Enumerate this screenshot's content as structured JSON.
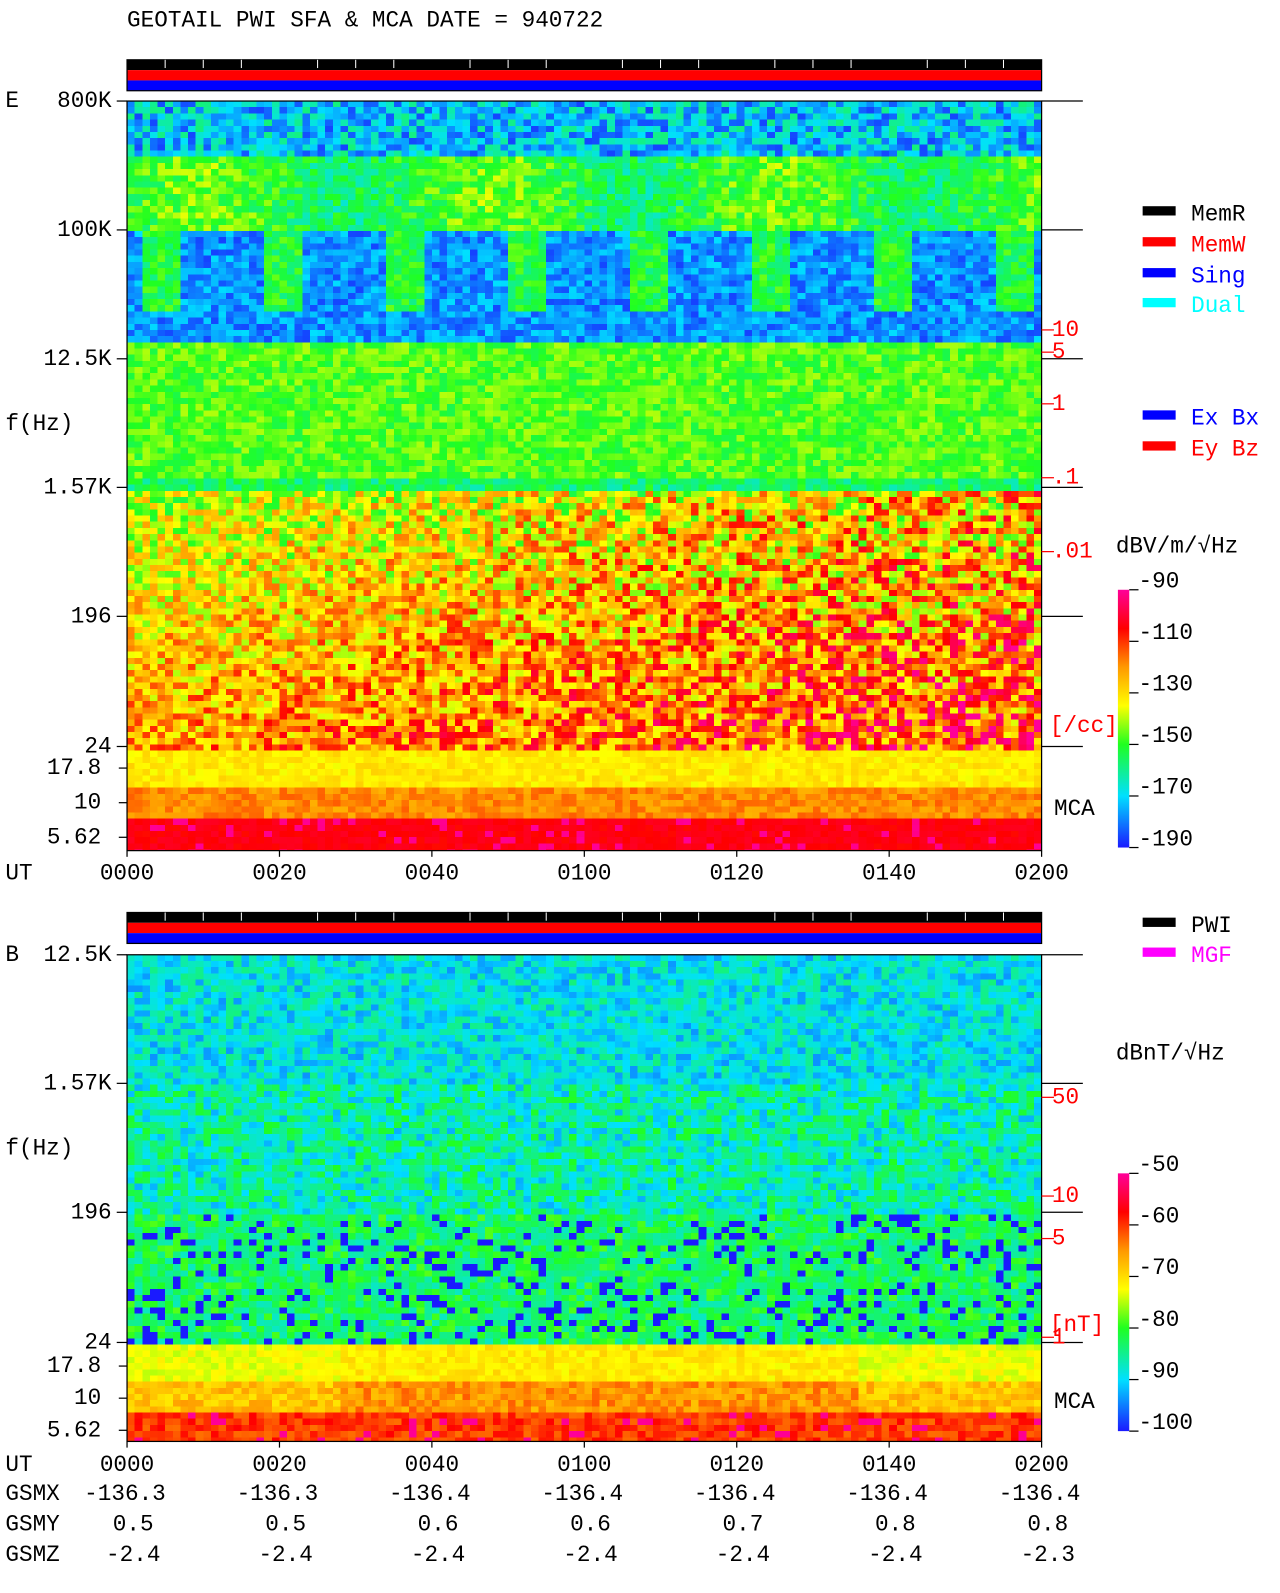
{
  "title": "GEOTAIL  PWI SFA & MCA   DATE = 940722",
  "chart_data": [
    {
      "type": "spectrogram",
      "panel_label": "E",
      "y_label": "f(Hz)",
      "x_label": "UT",
      "y_scale": "log",
      "ylim": [
        24,
        800000
      ],
      "yticks": [
        {
          "value": 800000,
          "label": "800K"
        },
        {
          "value": 100000,
          "label": "100K"
        },
        {
          "value": 12500,
          "label": "12.5K"
        },
        {
          "value": 1570,
          "label": "1.57K"
        },
        196,
        24
      ],
      "band_label": "MCA",
      "mca_ylim": [
        4.5,
        25.5
      ],
      "mca_yticks": [
        17.8,
        10,
        5.62
      ],
      "xlim": [
        0,
        120
      ],
      "xticks": [
        {
          "value": 0,
          "label": "0000"
        },
        {
          "value": 20,
          "label": "0020"
        },
        {
          "value": 40,
          "label": "0040"
        },
        {
          "value": 60,
          "label": "0100"
        },
        {
          "value": 80,
          "label": "0120"
        },
        {
          "value": 100,
          "label": "0140"
        },
        {
          "value": 120,
          "label": "0200"
        }
      ],
      "y2_label": "[/cc]",
      "y2_scale": "log",
      "y2_color": "#ff0000",
      "y2lim": [
        9e-07,
        12500
      ],
      "y2ticks": [
        10,
        5,
        1,
        {
          "value": 0.1,
          "label": ".1"
        },
        {
          "value": 0.01,
          "label": ".01"
        }
      ],
      "colorbar": {
        "label": "dBV/m/√Hz",
        "clim": [
          -190,
          -90
        ],
        "ticks": [
          -90,
          -110,
          -130,
          -150,
          -170,
          -190
        ]
      },
      "legends": [
        [
          {
            "name": "MemR",
            "color": "#000000"
          },
          {
            "name": "MemW",
            "color": "#ff0000"
          },
          {
            "name": "Sing",
            "color": "#0000ff"
          },
          {
            "name": "Dual",
            "color": "#00ffff"
          }
        ],
        [
          {
            "name": "Ex Bx",
            "color": "#0000ff"
          },
          {
            "name": "Ey Bz",
            "color": "#ff0000"
          }
        ]
      ]
    },
    {
      "type": "spectrogram",
      "panel_label": "B",
      "y_label": "f(Hz)",
      "x_label": "UT",
      "y_scale": "log",
      "ylim": [
        24,
        12500
      ],
      "yticks": [
        {
          "value": 12500,
          "label": "12.5K"
        },
        {
          "value": 1570,
          "label": "1.57K"
        },
        196,
        24
      ],
      "band_label": "MCA",
      "mca_ylim": [
        4.6,
        27.2
      ],
      "mca_yticks": [
        17.8,
        10,
        5.62
      ],
      "xlim": [
        0,
        120
      ],
      "xticks": [
        {
          "value": 0,
          "label": "0000"
        },
        {
          "value": 20,
          "label": "0020"
        },
        {
          "value": 40,
          "label": "0040"
        },
        {
          "value": 60,
          "label": "0100"
        },
        {
          "value": 80,
          "label": "0120"
        },
        {
          "value": 100,
          "label": "0140"
        },
        {
          "value": 120,
          "label": "0200"
        }
      ],
      "y2_label": "[nT]",
      "y2_scale": "log",
      "y2_color": "#ff0000",
      "y2lim": [
        0.183,
        511
      ],
      "y2ticks": [
        50,
        10,
        5,
        1
      ],
      "colorbar": {
        "label": "dBnT/√Hz",
        "clim": [
          -100,
          -50
        ],
        "ticks": [
          -50,
          -60,
          -70,
          -80,
          -90,
          -100
        ]
      },
      "legends": [
        [
          {
            "name": "PWI",
            "color": "#000000"
          },
          {
            "name": "MGF",
            "color": "#ff00ff"
          }
        ]
      ]
    }
  ],
  "orbit": {
    "labels": [
      "GSMX",
      "GSMY",
      "GSMZ"
    ],
    "rows": [
      [
        -136.3,
        -136.3,
        -136.4,
        -136.4,
        -136.4,
        -136.4,
        -136.4
      ],
      [
        0.5,
        0.5,
        0.6,
        0.6,
        0.7,
        0.8,
        0.8
      ],
      [
        -2.4,
        -2.4,
        -2.4,
        -2.4,
        -2.4,
        -2.4,
        -2.3
      ]
    ]
  }
}
